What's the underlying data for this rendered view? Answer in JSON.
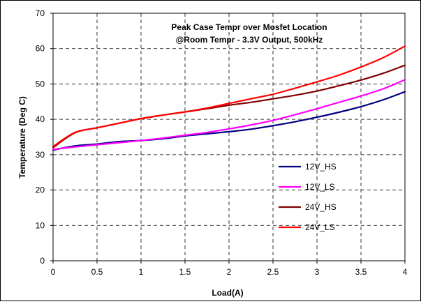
{
  "chart_data": {
    "type": "line",
    "title": "Peak Case Tempr over Mosfet Location",
    "subtitle": "@Room Tempr - 3.3V Output, 500kHz",
    "xlabel": "Load(A)",
    "ylabel": "Temperature (Deg C)",
    "xlim": [
      0,
      4
    ],
    "ylim": [
      0,
      70
    ],
    "xticks": [
      "0",
      "0.5",
      "1",
      "1.5",
      "2",
      "2.5",
      "3",
      "3.5",
      "4"
    ],
    "yticks": [
      "0",
      "10",
      "20",
      "30",
      "40",
      "50",
      "60",
      "70"
    ],
    "grid": true,
    "legend_position": "inside-lower-right",
    "x": [
      0,
      0.25,
      0.5,
      0.75,
      1,
      1.25,
      1.5,
      1.75,
      2,
      2.25,
      2.5,
      2.75,
      3,
      3.25,
      3.5,
      3.75,
      4
    ],
    "series": [
      {
        "name": "12V_HS",
        "color": "#000080",
        "values": [
          31.3,
          32.5,
          33.0,
          33.7,
          34.0,
          34.5,
          35.3,
          35.9,
          36.5,
          37.2,
          38.2,
          39.3,
          40.6,
          42.0,
          43.6,
          45.5,
          47.8
        ]
      },
      {
        "name": "12V_LS",
        "color": "#ff00ff",
        "values": [
          31.5,
          32.2,
          32.8,
          33.4,
          34.0,
          34.7,
          35.5,
          36.3,
          37.3,
          38.4,
          39.7,
          41.3,
          43.0,
          44.8,
          46.6,
          48.6,
          51.2
        ]
      },
      {
        "name": "24V_HS",
        "color": "#800000",
        "values": [
          32.0,
          36.2,
          37.6,
          38.9,
          40.2,
          41.2,
          42.1,
          43.0,
          44.0,
          44.8,
          45.8,
          46.8,
          48.0,
          49.5,
          51.1,
          53.0,
          55.3
        ]
      },
      {
        "name": "24V_LS",
        "color": "#ff0000",
        "values": [
          32.3,
          36.3,
          37.6,
          38.9,
          40.2,
          41.2,
          42.1,
          43.2,
          44.5,
          45.8,
          47.1,
          48.8,
          50.6,
          52.5,
          54.8,
          57.4,
          60.7
        ]
      }
    ]
  }
}
